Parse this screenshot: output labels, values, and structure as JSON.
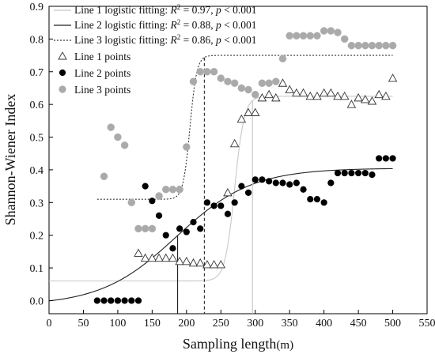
{
  "chart_data": {
    "type": "scatter",
    "xlabel": "Sampling length",
    "xlabel_unit": "(m)",
    "ylabel": "Shannon-Wiener Index",
    "xlim": [
      0,
      550
    ],
    "ylim": [
      -0.04,
      0.9
    ],
    "xticks": [
      0,
      50,
      100,
      150,
      200,
      250,
      300,
      350,
      400,
      450,
      500,
      550
    ],
    "yticks": [
      0.0,
      0.1,
      0.2,
      0.3,
      0.4,
      0.5,
      0.6,
      0.7,
      0.8,
      0.9
    ],
    "grid": false,
    "legend_position": "top-left",
    "legend": [
      {
        "key": "fit1",
        "prefix": "Line 1 logistic fitting: ",
        "r2": "0.97",
        "p": "0.001"
      },
      {
        "key": "fit2",
        "prefix": "Line 2 logistic fitting: ",
        "r2": "0.88",
        "p": "0.001"
      },
      {
        "key": "fit3",
        "prefix": "Line 3 logistic fitting: ",
        "r2": "0.86",
        "p": "0.001"
      },
      {
        "key": "pts1",
        "label": "Line 1 points"
      },
      {
        "key": "pts2",
        "label": "Line 2 points"
      },
      {
        "key": "pts3",
        "label": "Line 3 points"
      }
    ],
    "series": [
      {
        "key": "pts1",
        "marker": "open-triangle",
        "color": "#333333",
        "points": [
          [
            130,
            0.145
          ],
          [
            140,
            0.13
          ],
          [
            150,
            0.13
          ],
          [
            160,
            0.13
          ],
          [
            170,
            0.13
          ],
          [
            180,
            0.13
          ],
          [
            190,
            0.12
          ],
          [
            200,
            0.12
          ],
          [
            210,
            0.115
          ],
          [
            220,
            0.115
          ],
          [
            230,
            0.11
          ],
          [
            240,
            0.11
          ],
          [
            250,
            0.11
          ],
          [
            260,
            0.33
          ],
          [
            270,
            0.48
          ],
          [
            280,
            0.555
          ],
          [
            290,
            0.575
          ],
          [
            300,
            0.575
          ],
          [
            310,
            0.62
          ],
          [
            320,
            0.63
          ],
          [
            330,
            0.62
          ],
          [
            340,
            0.665
          ],
          [
            350,
            0.645
          ],
          [
            360,
            0.635
          ],
          [
            370,
            0.635
          ],
          [
            380,
            0.625
          ],
          [
            390,
            0.625
          ],
          [
            400,
            0.635
          ],
          [
            410,
            0.635
          ],
          [
            420,
            0.625
          ],
          [
            430,
            0.625
          ],
          [
            440,
            0.6
          ],
          [
            450,
            0.62
          ],
          [
            460,
            0.615
          ],
          [
            470,
            0.61
          ],
          [
            480,
            0.63
          ],
          [
            490,
            0.625
          ],
          [
            500,
            0.68
          ]
        ]
      },
      {
        "key": "pts2",
        "marker": "filled-circle",
        "color": "#000000",
        "points": [
          [
            70,
            0.0
          ],
          [
            80,
            0.0
          ],
          [
            90,
            0.0
          ],
          [
            100,
            0.0
          ],
          [
            110,
            0.0
          ],
          [
            120,
            0.0
          ],
          [
            130,
            0.0
          ],
          [
            140,
            0.35
          ],
          [
            150,
            0.305
          ],
          [
            160,
            0.26
          ],
          [
            170,
            0.2
          ],
          [
            180,
            0.16
          ],
          [
            190,
            0.22
          ],
          [
            200,
            0.21
          ],
          [
            210,
            0.24
          ],
          [
            220,
            0.22
          ],
          [
            230,
            0.3
          ],
          [
            240,
            0.29
          ],
          [
            250,
            0.29
          ],
          [
            260,
            0.265
          ],
          [
            270,
            0.3
          ],
          [
            280,
            0.35
          ],
          [
            290,
            0.33
          ],
          [
            300,
            0.37
          ],
          [
            310,
            0.37
          ],
          [
            320,
            0.365
          ],
          [
            330,
            0.36
          ],
          [
            340,
            0.36
          ],
          [
            350,
            0.355
          ],
          [
            360,
            0.36
          ],
          [
            370,
            0.34
          ],
          [
            380,
            0.31
          ],
          [
            390,
            0.31
          ],
          [
            400,
            0.3
          ],
          [
            410,
            0.36
          ],
          [
            420,
            0.39
          ],
          [
            430,
            0.39
          ],
          [
            440,
            0.39
          ],
          [
            450,
            0.39
          ],
          [
            460,
            0.39
          ],
          [
            470,
            0.385
          ],
          [
            480,
            0.435
          ],
          [
            490,
            0.435
          ],
          [
            500,
            0.435
          ]
        ]
      },
      {
        "key": "pts3",
        "marker": "filled-circle",
        "color": "#aaaaaa",
        "points": [
          [
            80,
            0.38
          ],
          [
            90,
            0.53
          ],
          [
            100,
            0.5
          ],
          [
            110,
            0.475
          ],
          [
            120,
            0.3
          ],
          [
            130,
            0.22
          ],
          [
            140,
            0.22
          ],
          [
            150,
            0.22
          ],
          [
            160,
            0.32
          ],
          [
            170,
            0.34
          ],
          [
            180,
            0.34
          ],
          [
            190,
            0.34
          ],
          [
            200,
            0.47
          ],
          [
            210,
            0.67
          ],
          [
            220,
            0.7
          ],
          [
            230,
            0.7
          ],
          [
            240,
            0.7
          ],
          [
            250,
            0.68
          ],
          [
            260,
            0.67
          ],
          [
            270,
            0.665
          ],
          [
            280,
            0.65
          ],
          [
            290,
            0.645
          ],
          [
            300,
            0.63
          ],
          [
            310,
            0.665
          ],
          [
            320,
            0.665
          ],
          [
            330,
            0.67
          ],
          [
            340,
            0.74
          ],
          [
            350,
            0.81
          ],
          [
            360,
            0.81
          ],
          [
            370,
            0.81
          ],
          [
            380,
            0.81
          ],
          [
            390,
            0.81
          ],
          [
            400,
            0.825
          ],
          [
            410,
            0.825
          ],
          [
            420,
            0.82
          ],
          [
            430,
            0.8
          ],
          [
            440,
            0.78
          ],
          [
            450,
            0.78
          ],
          [
            460,
            0.78
          ],
          [
            470,
            0.78
          ],
          [
            480,
            0.78
          ],
          [
            490,
            0.78
          ],
          [
            500,
            0.78
          ]
        ]
      }
    ],
    "fits": [
      {
        "key": "fit1",
        "lower": 0.06,
        "upper": 0.625,
        "center": 270,
        "scale": 7,
        "x_range": [
          0,
          500
        ],
        "color": "#c8c8c8",
        "dash": "",
        "marker_x": 296
      },
      {
        "key": "fit2",
        "lower": -0.015,
        "upper": 0.405,
        "center": 185,
        "scale": 55,
        "x_range": [
          0,
          500
        ],
        "color": "#222222",
        "dash": "",
        "marker_x": 187
      },
      {
        "key": "fit3",
        "lower": 0.31,
        "upper": 0.75,
        "center": 205,
        "scale": 5,
        "x_range": [
          70,
          500
        ],
        "color": "#333333",
        "dash": "2,2",
        "marker_x": 226
      }
    ]
  }
}
